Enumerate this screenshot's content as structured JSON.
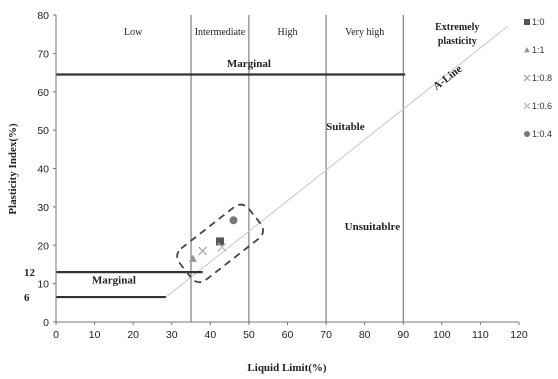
{
  "chart_data": {
    "type": "scatter",
    "xlabel": "Liquid Limit(%)",
    "ylabel": "Plasticity Index(%)",
    "xlim": [
      0,
      120
    ],
    "ylim": [
      0,
      80
    ],
    "x_ticks": [
      0,
      10,
      20,
      30,
      40,
      50,
      60,
      70,
      80,
      90,
      100,
      110,
      120
    ],
    "y_ticks": [
      0,
      10,
      20,
      30,
      40,
      50,
      60,
      70,
      80
    ],
    "grid": false,
    "legend_position": "right",
    "zone_boundaries_x": [
      35,
      50,
      70,
      90
    ],
    "zones": [
      {
        "label": "Low",
        "x": 20
      },
      {
        "label": "Intermediate",
        "x": 42.5
      },
      {
        "label": "High",
        "x": 60
      },
      {
        "label": "Very high",
        "x": 80
      },
      {
        "label": "Extremely",
        "x": 104
      },
      {
        "label": "plasticity",
        "x": 104
      }
    ],
    "lines": [
      {
        "name": "A-Line",
        "x": [
          28.5,
          117
        ],
        "y": [
          6.5,
          77
        ],
        "color": "#c8c8c8"
      },
      {
        "name": "marginal-upper",
        "x": [
          0,
          90.5
        ],
        "y": [
          64.5,
          64.5
        ],
        "color": "#333333"
      },
      {
        "name": "marginal-lower-12",
        "x": [
          0,
          38
        ],
        "y": [
          13,
          13
        ],
        "color": "#333333"
      },
      {
        "name": "marginal-lower-6",
        "x": [
          0,
          28.5
        ],
        "y": [
          6.5,
          6.5
        ],
        "color": "#333333"
      }
    ],
    "region_labels": [
      {
        "text": "Marginal",
        "x": 50,
        "y": 66.5
      },
      {
        "text": "Suitable",
        "x": 75,
        "y": 50
      },
      {
        "text": "Unsuitablre",
        "x": 82,
        "y": 24
      },
      {
        "text": "Marginal",
        "x": 15,
        "y": 10
      },
      {
        "text": "A-Line",
        "x": 102,
        "y": 63
      }
    ],
    "annotations": [
      {
        "text": "12",
        "y": 13
      },
      {
        "text": "6",
        "y": 6.5
      }
    ],
    "series": [
      {
        "name": "1:0",
        "marker": "square",
        "color": "#555555",
        "x": [
          42.5
        ],
        "y": [
          21
        ]
      },
      {
        "name": "1:1",
        "marker": "triangle",
        "color": "#999999",
        "x": [
          35.5
        ],
        "y": [
          16.5
        ]
      },
      {
        "name": "1:0.8",
        "marker": "x",
        "color": "#aaaaaa",
        "x": [
          38
        ],
        "y": [
          18.5
        ]
      },
      {
        "name": "1:0.6",
        "marker": "x",
        "color": "#bbbbbb",
        "x": [
          43
        ],
        "y": [
          19.5
        ]
      },
      {
        "name": "1:0.4",
        "marker": "circle",
        "color": "#777777",
        "x": [
          46
        ],
        "y": [
          26.5
        ]
      }
    ]
  }
}
